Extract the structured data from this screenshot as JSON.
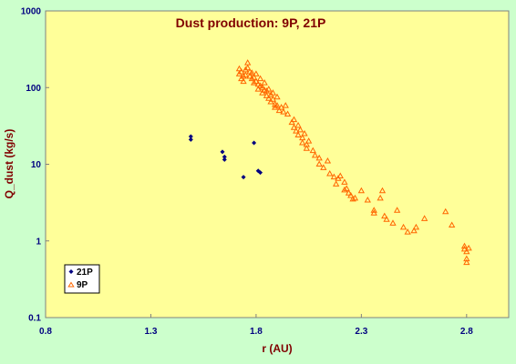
{
  "chart_data": {
    "type": "scatter",
    "title": "Dust production: 9P, 21P",
    "xlabel": "r (AU)",
    "ylabel": "Q_dust (kg/s)",
    "xlim": [
      0.8,
      3.0
    ],
    "ylim": [
      0.1,
      1000
    ],
    "yscale": "log",
    "x_ticks": [
      "0.8",
      "1.3",
      "1.8",
      "2.3",
      "2.8"
    ],
    "y_ticks": [
      "0.1",
      "1",
      "10",
      "100",
      "1000"
    ],
    "grid": false,
    "legend_position": "bottom-left",
    "colors": {
      "background": "#ccffcc",
      "plot_area": "#ffff99",
      "21P": "#000080",
      "9P": "#ff6600"
    },
    "series": [
      {
        "name": "21P",
        "marker": "diamond",
        "points": [
          [
            1.49,
            23
          ],
          [
            1.49,
            21
          ],
          [
            1.64,
            14.5
          ],
          [
            1.65,
            12.5
          ],
          [
            1.65,
            11.5
          ],
          [
            1.74,
            6.8
          ],
          [
            1.79,
            19
          ],
          [
            1.81,
            8.2
          ],
          [
            1.82,
            7.8
          ]
        ]
      },
      {
        "name": "9P",
        "marker": "triangle",
        "points": [
          [
            1.72,
            175
          ],
          [
            1.72,
            150
          ],
          [
            1.73,
            130
          ],
          [
            1.73,
            160
          ],
          [
            1.74,
            140
          ],
          [
            1.74,
            120
          ],
          [
            1.75,
            170
          ],
          [
            1.75,
            145
          ],
          [
            1.76,
            210
          ],
          [
            1.76,
            180
          ],
          [
            1.77,
            160
          ],
          [
            1.77,
            140
          ],
          [
            1.78,
            155
          ],
          [
            1.78,
            130
          ],
          [
            1.79,
            135
          ],
          [
            1.79,
            115
          ],
          [
            1.8,
            120
          ],
          [
            1.8,
            150
          ],
          [
            1.81,
            110
          ],
          [
            1.81,
            95
          ],
          [
            1.82,
            130
          ],
          [
            1.82,
            105
          ],
          [
            1.83,
            100
          ],
          [
            1.83,
            85
          ],
          [
            1.84,
            115
          ],
          [
            1.84,
            92
          ],
          [
            1.85,
            90
          ],
          [
            1.85,
            78
          ],
          [
            1.86,
            95
          ],
          [
            1.86,
            72
          ],
          [
            1.87,
            80
          ],
          [
            1.87,
            65
          ],
          [
            1.88,
            85
          ],
          [
            1.88,
            70
          ],
          [
            1.89,
            60
          ],
          [
            1.89,
            55
          ],
          [
            1.9,
            75
          ],
          [
            1.9,
            58
          ],
          [
            1.91,
            50
          ],
          [
            1.92,
            55
          ],
          [
            1.93,
            48
          ],
          [
            1.94,
            58
          ],
          [
            1.95,
            45
          ],
          [
            1.97,
            35
          ],
          [
            1.98,
            30
          ],
          [
            1.98,
            38
          ],
          [
            1.99,
            27
          ],
          [
            2.0,
            32
          ],
          [
            2.0,
            24
          ],
          [
            2.01,
            28
          ],
          [
            2.02,
            22
          ],
          [
            2.02,
            19
          ],
          [
            2.03,
            25
          ],
          [
            2.04,
            18
          ],
          [
            2.04,
            16
          ],
          [
            2.05,
            20
          ],
          [
            2.07,
            15
          ],
          [
            2.08,
            13
          ],
          [
            2.1,
            12
          ],
          [
            2.1,
            10
          ],
          [
            2.12,
            9
          ],
          [
            2.14,
            11
          ],
          [
            2.15,
            7.5
          ],
          [
            2.17,
            6.8
          ],
          [
            2.18,
            5.5
          ],
          [
            2.19,
            6.5
          ],
          [
            2.2,
            7
          ],
          [
            2.22,
            5.8
          ],
          [
            2.22,
            4.6
          ],
          [
            2.23,
            4.8
          ],
          [
            2.24,
            4.2
          ],
          [
            2.25,
            3.9
          ],
          [
            2.26,
            3.5
          ],
          [
            2.27,
            3.6
          ],
          [
            2.3,
            4.5
          ],
          [
            2.33,
            3.4
          ],
          [
            2.36,
            2.5
          ],
          [
            2.36,
            2.3
          ],
          [
            2.39,
            3.6
          ],
          [
            2.4,
            4.5
          ],
          [
            2.41,
            2.1
          ],
          [
            2.42,
            1.9
          ],
          [
            2.45,
            1.7
          ],
          [
            2.47,
            2.5
          ],
          [
            2.5,
            1.5
          ],
          [
            2.52,
            1.3
          ],
          [
            2.55,
            1.35
          ],
          [
            2.56,
            1.5
          ],
          [
            2.6,
            1.95
          ],
          [
            2.7,
            2.4
          ],
          [
            2.73,
            1.6
          ],
          [
            2.79,
            0.85
          ],
          [
            2.79,
            0.78
          ],
          [
            2.8,
            0.72
          ],
          [
            2.8,
            0.58
          ],
          [
            2.8,
            0.52
          ],
          [
            2.81,
            0.8
          ]
        ]
      }
    ]
  }
}
